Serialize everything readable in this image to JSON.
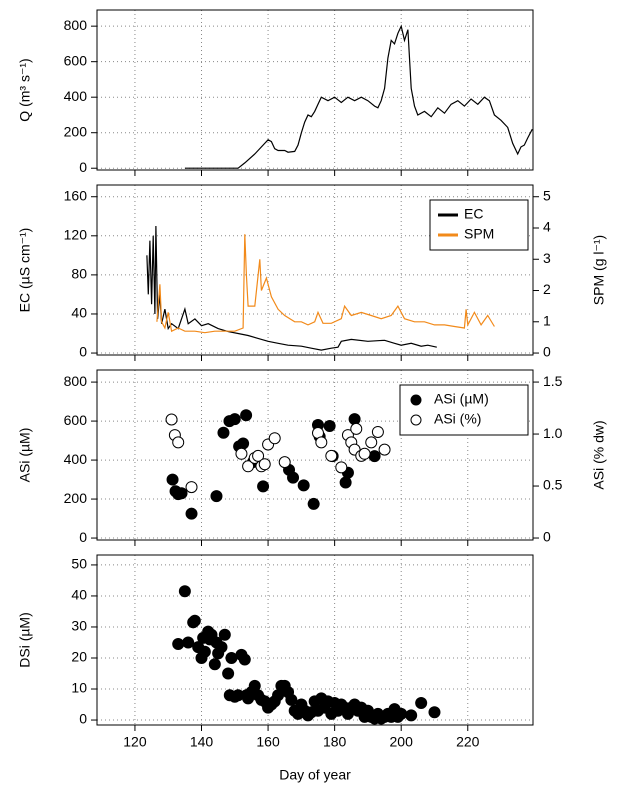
{
  "chart_data": [
    {
      "type": "line",
      "ylabel": "Q (m³ s⁻¹)",
      "xlim": [
        108.6,
        239.6
      ],
      "xticks": [
        120,
        140,
        160,
        180,
        200,
        220
      ],
      "ylim": [
        -10,
        891
      ],
      "yticks": [
        0,
        200,
        400,
        600,
        800
      ],
      "grid": true,
      "series": [
        {
          "name": "Q",
          "color": "#000000",
          "x": [
            135,
            151,
            153,
            156,
            159,
            160,
            161,
            162,
            163,
            165,
            166,
            168,
            169,
            170,
            171,
            172,
            173,
            174,
            175,
            176,
            178,
            180,
            182,
            184,
            186,
            188,
            190,
            192,
            193,
            194,
            195,
            196,
            197,
            198,
            199,
            200,
            201,
            202,
            203,
            204,
            205,
            207,
            209,
            211,
            213,
            215,
            217,
            219,
            221,
            223,
            225,
            226.5,
            228,
            230,
            232,
            233.5,
            235,
            236,
            237,
            238,
            239.4
          ],
          "values": [
            0,
            0,
            30,
            80,
            140,
            160,
            150,
            110,
            100,
            100,
            90,
            95,
            130,
            200,
            260,
            300,
            290,
            320,
            360,
            400,
            380,
            400,
            370,
            400,
            380,
            400,
            380,
            350,
            340,
            380,
            450,
            620,
            720,
            700,
            760,
            800,
            720,
            780,
            450,
            350,
            300,
            320,
            290,
            340,
            310,
            360,
            380,
            350,
            390,
            360,
            400,
            380,
            300,
            270,
            230,
            140,
            80,
            120,
            130,
            170,
            220
          ]
        }
      ]
    },
    {
      "type": "line",
      "ylabel": "EC (µS cm⁻¹)",
      "y2label": "SPM (g l⁻¹)",
      "xlim": [
        108.6,
        239.6
      ],
      "xticks": [
        120,
        140,
        160,
        180,
        200,
        220
      ],
      "ylim": [
        -2,
        172
      ],
      "yticks": [
        0,
        40,
        80,
        120,
        160
      ],
      "y2lim": [
        -0.0625,
        5.375
      ],
      "y2ticks": [
        0,
        1,
        2,
        3,
        4,
        5
      ],
      "grid": true,
      "legend": "upper right",
      "series": [
        {
          "name": "EC",
          "color": "#000000",
          "x": [
            123.6,
            124,
            124.5,
            125,
            125.5,
            126,
            126.3,
            126.8,
            127.5,
            128,
            129,
            130,
            131,
            133,
            135,
            136,
            138,
            140,
            142,
            145,
            148,
            151,
            154,
            157,
            160,
            163,
            166,
            170,
            173,
            176,
            179,
            181,
            182,
            185,
            190,
            195,
            198,
            200,
            203,
            206,
            208,
            210.7
          ],
          "values": [
            100,
            60,
            115,
            50,
            120,
            40,
            130,
            35,
            60,
            30,
            45,
            25,
            30,
            25,
            45,
            30,
            35,
            28,
            30,
            25,
            22,
            20,
            18,
            15,
            12,
            10,
            8,
            7,
            5,
            3,
            5,
            6,
            12,
            14,
            12,
            13,
            10,
            8,
            10,
            7,
            8,
            6
          ]
        },
        {
          "name": "SPM",
          "color": "#f28a1a",
          "axis": "y2",
          "x": [
            126.6,
            127.5,
            128,
            129,
            130,
            131,
            133,
            135,
            138,
            141,
            144,
            147,
            150,
            152.5,
            153,
            153.5,
            154,
            156,
            157.5,
            158,
            159.5,
            161,
            163,
            165,
            168,
            170,
            172,
            174,
            175,
            176.5,
            179,
            182,
            183,
            185,
            188,
            191,
            194,
            197,
            199,
            201,
            204,
            207,
            210,
            213,
            216,
            219,
            219.5,
            220,
            222,
            224,
            226,
            228
          ],
          "values": [
            1.0,
            2.2,
            1.0,
            0.8,
            1.3,
            0.7,
            0.8,
            0.7,
            0.7,
            0.65,
            0.7,
            0.7,
            0.7,
            0.8,
            3.8,
            2.5,
            1.5,
            1.5,
            3.0,
            2.0,
            2.4,
            1.8,
            1.4,
            1.2,
            1.0,
            1.0,
            0.9,
            1.0,
            1.3,
            0.95,
            0.95,
            1.1,
            1.5,
            1.2,
            1.3,
            1.2,
            1.1,
            1.2,
            1.5,
            1.1,
            1.0,
            1.0,
            0.9,
            0.9,
            0.85,
            0.8,
            1.4,
            0.9,
            1.3,
            0.9,
            1.2,
            0.85
          ]
        }
      ]
    },
    {
      "type": "scatter",
      "ylabel": "ASi (µM)",
      "y2label": "ASi (% dw)",
      "xlim": [
        108.6,
        239.6
      ],
      "xticks": [
        120,
        140,
        160,
        180,
        200,
        220
      ],
      "ylim": [
        -10,
        862
      ],
      "yticks": [
        0,
        200,
        400,
        600,
        800
      ],
      "y2lim": [
        -0.019,
        1.616
      ],
      "y2ticks": [
        0,
        0.5,
        {
          "value": 1,
          "label": "1.0"
        },
        1.5
      ],
      "grid": true,
      "legend": "upper right",
      "series": [
        {
          "name": "ASi (µM)",
          "color": "#000000",
          "marker": "filled",
          "x": [
            131.3,
            132.2,
            133,
            134,
            137,
            144.5,
            146.6,
            148.4,
            150,
            151.3,
            152.5,
            153.4,
            155.5,
            158.5,
            166.3,
            167.5,
            170.7,
            173.7,
            175,
            175.5,
            178.5,
            179.4,
            183.3,
            184,
            186,
            192
          ],
          "values": [
            300,
            240,
            225,
            230,
            125,
            215,
            540,
            600,
            610,
            470,
            485,
            630,
            390,
            265,
            350,
            310,
            270,
            175,
            580,
            520,
            575,
            420,
            285,
            335,
            610,
            420
          ]
        },
        {
          "name": "ASi (%)",
          "color": "#000000",
          "marker": "open",
          "axis": "y2",
          "x": [
            131,
            132,
            133,
            137,
            152,
            154,
            156,
            157,
            158,
            159,
            160,
            162,
            165,
            175,
            176,
            179,
            182,
            184,
            185,
            186,
            186.5,
            188,
            189,
            191,
            193,
            195
          ],
          "values": [
            1.14,
            0.99,
            0.92,
            0.49,
            0.81,
            0.69,
            0.77,
            0.79,
            0.69,
            0.71,
            0.9,
            0.96,
            0.73,
            1.01,
            0.92,
            0.79,
            0.68,
            0.99,
            0.92,
            0.85,
            1.05,
            0.79,
            0.81,
            0.92,
            1.02,
            0.85
          ]
        }
      ]
    },
    {
      "type": "scatter",
      "ylabel": "DSi (µM)",
      "xlabel": "Day of year",
      "xlim": [
        108.6,
        239.6
      ],
      "xticks": [
        120,
        140,
        160,
        180,
        200,
        220
      ],
      "ylim": [
        -1.6,
        53.2
      ],
      "yticks": [
        0,
        10,
        20,
        30,
        40,
        50
      ],
      "grid": true,
      "series": [
        {
          "name": "DSi",
          "color": "#000000",
          "marker": "filled",
          "x": [
            133,
            135,
            136,
            137.5,
            138,
            139,
            140,
            140.5,
            141,
            142,
            142.5,
            143,
            144,
            144.5,
            145,
            146,
            147,
            148,
            148.5,
            149,
            150,
            151,
            152,
            153,
            153.5,
            154,
            155,
            156,
            157,
            158,
            159,
            160,
            161,
            162,
            163,
            164,
            165,
            166,
            167,
            168,
            169,
            170,
            171,
            172,
            173,
            174,
            175,
            176,
            177,
            178,
            179,
            180,
            181,
            182,
            183,
            184,
            185,
            186,
            187,
            188,
            189,
            190,
            191,
            192,
            193,
            194,
            195,
            196,
            197,
            198,
            199,
            200,
            203,
            206,
            210
          ],
          "values": [
            24.5,
            41.5,
            25,
            31.5,
            32,
            23.5,
            20,
            26.5,
            22,
            28.5,
            26,
            27.5,
            18,
            25,
            21.5,
            23.5,
            27.5,
            15,
            8,
            20,
            7.5,
            8,
            21,
            19.5,
            8,
            7,
            9,
            11,
            8,
            6.5,
            6,
            4,
            5,
            6,
            8,
            11,
            11,
            9,
            6.5,
            3,
            2,
            5,
            3,
            1.5,
            2.5,
            6,
            3,
            7,
            4,
            6,
            2,
            5.5,
            3,
            5,
            4,
            2,
            4,
            5,
            3,
            4,
            1,
            3,
            1,
            0.5,
            2,
            0.5,
            1,
            2,
            1,
            3.5,
            1,
            2,
            1.5,
            5.5,
            2.5
          ]
        }
      ]
    }
  ]
}
